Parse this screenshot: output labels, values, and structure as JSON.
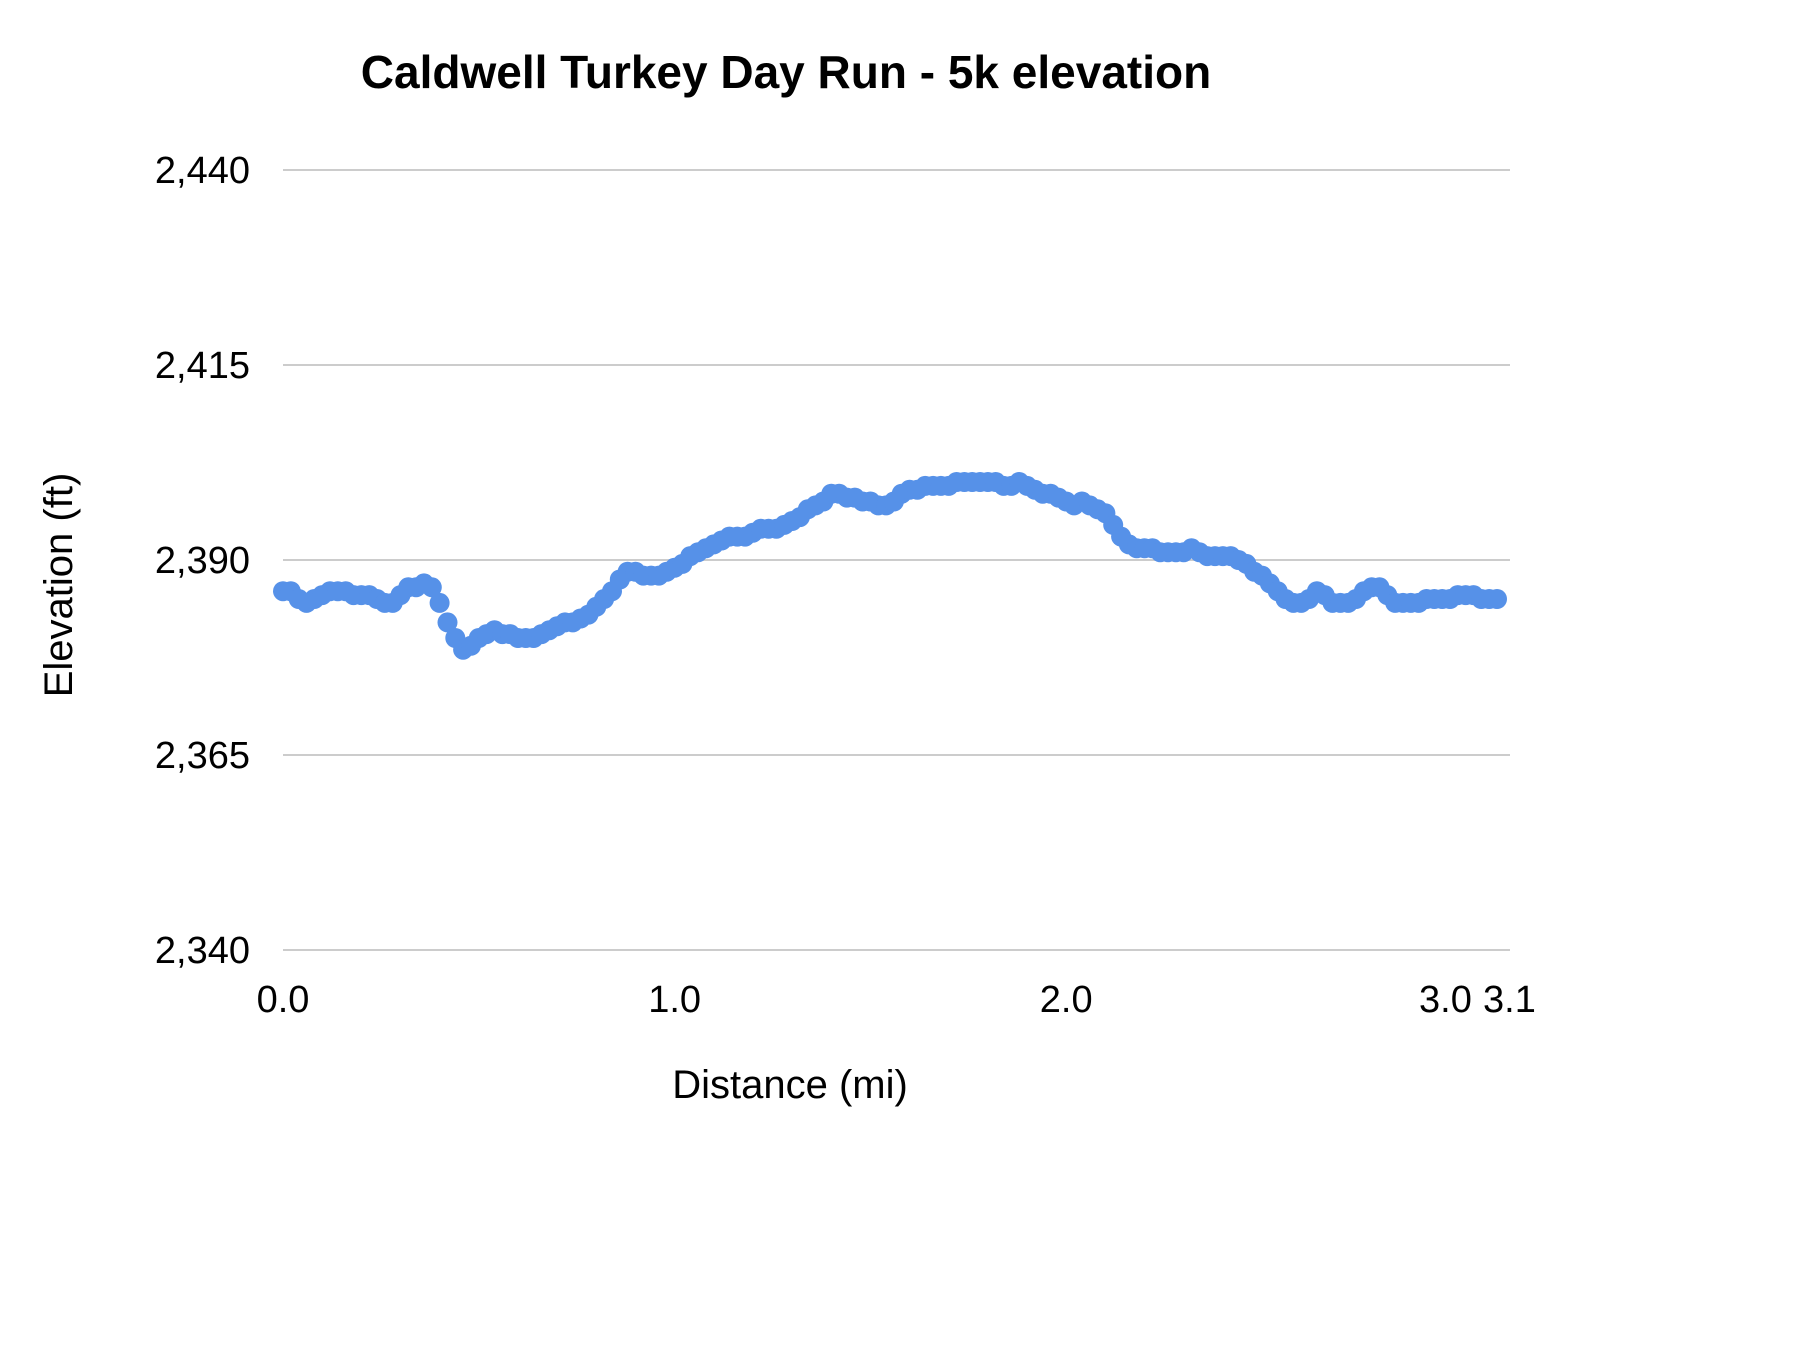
{
  "chart_data": {
    "type": "scatter",
    "title": "Caldwell Turkey Day Run - 5k elevation",
    "xlabel": "Distance (mi)",
    "ylabel": "Elevation (ft)",
    "xlim": [
      0,
      3.1
    ],
    "ylim": [
      2340,
      2440
    ],
    "grid": true,
    "legend": "none",
    "point_color": "#5691E8",
    "grid_color": "#CCCCCC",
    "text_color": "#000000",
    "x_ticks": [
      {
        "v": 0.0,
        "label": "0.0"
      },
      {
        "v": 1.0,
        "label": "1.0"
      },
      {
        "v": 2.0,
        "label": "2.0"
      },
      {
        "v": 3.0,
        "label": "3.0"
      },
      {
        "v": 3.1,
        "label": "3.1"
      }
    ],
    "y_ticks": [
      {
        "v": 2340,
        "label": "2,340"
      },
      {
        "v": 2365,
        "label": "2,365"
      },
      {
        "v": 2390,
        "label": "2,390"
      },
      {
        "v": 2415,
        "label": "2,415"
      },
      {
        "v": 2440,
        "label": "2,440"
      }
    ],
    "points": [
      [
        0.0,
        2386
      ],
      [
        0.02,
        2386
      ],
      [
        0.04,
        2385
      ],
      [
        0.06,
        2384.5
      ],
      [
        0.08,
        2385
      ],
      [
        0.1,
        2385.5
      ],
      [
        0.12,
        2386
      ],
      [
        0.14,
        2386
      ],
      [
        0.16,
        2386
      ],
      [
        0.18,
        2385.5
      ],
      [
        0.2,
        2385.5
      ],
      [
        0.22,
        2385.5
      ],
      [
        0.24,
        2385
      ],
      [
        0.26,
        2384.5
      ],
      [
        0.28,
        2384.5
      ],
      [
        0.3,
        2385.5
      ],
      [
        0.32,
        2386.5
      ],
      [
        0.34,
        2386.5
      ],
      [
        0.36,
        2387
      ],
      [
        0.38,
        2386.5
      ],
      [
        0.4,
        2384.5
      ],
      [
        0.42,
        2382
      ],
      [
        0.44,
        2380
      ],
      [
        0.46,
        2378.5
      ],
      [
        0.48,
        2379
      ],
      [
        0.5,
        2380
      ],
      [
        0.52,
        2380.5
      ],
      [
        0.54,
        2381
      ],
      [
        0.56,
        2380.5
      ],
      [
        0.58,
        2380.5
      ],
      [
        0.6,
        2380
      ],
      [
        0.62,
        2380
      ],
      [
        0.64,
        2380
      ],
      [
        0.66,
        2380.5
      ],
      [
        0.68,
        2381
      ],
      [
        0.7,
        2381.5
      ],
      [
        0.72,
        2382
      ],
      [
        0.74,
        2382
      ],
      [
        0.76,
        2382.5
      ],
      [
        0.78,
        2383
      ],
      [
        0.8,
        2384
      ],
      [
        0.82,
        2385
      ],
      [
        0.84,
        2386
      ],
      [
        0.86,
        2387.5
      ],
      [
        0.88,
        2388.5
      ],
      [
        0.9,
        2388.5
      ],
      [
        0.92,
        2388
      ],
      [
        0.94,
        2388
      ],
      [
        0.96,
        2388
      ],
      [
        0.98,
        2388.5
      ],
      [
        1.0,
        2389
      ],
      [
        1.02,
        2389.5
      ],
      [
        1.04,
        2390.5
      ],
      [
        1.06,
        2391
      ],
      [
        1.08,
        2391.5
      ],
      [
        1.1,
        2392
      ],
      [
        1.12,
        2392.5
      ],
      [
        1.14,
        2393
      ],
      [
        1.16,
        2393
      ],
      [
        1.18,
        2393
      ],
      [
        1.2,
        2393.5
      ],
      [
        1.22,
        2394
      ],
      [
        1.24,
        2394
      ],
      [
        1.26,
        2394
      ],
      [
        1.28,
        2394.5
      ],
      [
        1.3,
        2395
      ],
      [
        1.32,
        2395.5
      ],
      [
        1.34,
        2396.5
      ],
      [
        1.36,
        2397
      ],
      [
        1.38,
        2397.5
      ],
      [
        1.4,
        2398.5
      ],
      [
        1.42,
        2398.5
      ],
      [
        1.44,
        2398
      ],
      [
        1.46,
        2398
      ],
      [
        1.48,
        2397.5
      ],
      [
        1.5,
        2397.5
      ],
      [
        1.52,
        2397
      ],
      [
        1.54,
        2397
      ],
      [
        1.56,
        2397.5
      ],
      [
        1.58,
        2398.5
      ],
      [
        1.6,
        2399
      ],
      [
        1.62,
        2399
      ],
      [
        1.64,
        2399.5
      ],
      [
        1.66,
        2399.5
      ],
      [
        1.68,
        2399.5
      ],
      [
        1.7,
        2399.5
      ],
      [
        1.72,
        2400
      ],
      [
        1.74,
        2400
      ],
      [
        1.76,
        2400
      ],
      [
        1.78,
        2400
      ],
      [
        1.8,
        2400
      ],
      [
        1.82,
        2400
      ],
      [
        1.84,
        2399.5
      ],
      [
        1.86,
        2399.5
      ],
      [
        1.88,
        2400
      ],
      [
        1.9,
        2399.5
      ],
      [
        1.92,
        2399
      ],
      [
        1.94,
        2398.5
      ],
      [
        1.96,
        2398.5
      ],
      [
        1.98,
        2398
      ],
      [
        2.0,
        2397.5
      ],
      [
        2.02,
        2397
      ],
      [
        2.04,
        2397.5
      ],
      [
        2.06,
        2397
      ],
      [
        2.08,
        2396.5
      ],
      [
        2.1,
        2396
      ],
      [
        2.12,
        2394.5
      ],
      [
        2.14,
        2393
      ],
      [
        2.16,
        2392
      ],
      [
        2.18,
        2391.5
      ],
      [
        2.2,
        2391.5
      ],
      [
        2.22,
        2391.5
      ],
      [
        2.24,
        2391
      ],
      [
        2.26,
        2391
      ],
      [
        2.28,
        2391
      ],
      [
        2.3,
        2391
      ],
      [
        2.32,
        2391.5
      ],
      [
        2.34,
        2391
      ],
      [
        2.36,
        2390.5
      ],
      [
        2.38,
        2390.5
      ],
      [
        2.4,
        2390.5
      ],
      [
        2.42,
        2390.5
      ],
      [
        2.44,
        2390
      ],
      [
        2.46,
        2389.5
      ],
      [
        2.48,
        2388.5
      ],
      [
        2.5,
        2388
      ],
      [
        2.52,
        2387
      ],
      [
        2.54,
        2386
      ],
      [
        2.56,
        2385
      ],
      [
        2.58,
        2384.5
      ],
      [
        2.6,
        2384.5
      ],
      [
        2.62,
        2385
      ],
      [
        2.64,
        2386
      ],
      [
        2.66,
        2385.5
      ],
      [
        2.68,
        2384.5
      ],
      [
        2.7,
        2384.5
      ],
      [
        2.72,
        2384.5
      ],
      [
        2.74,
        2385
      ],
      [
        2.76,
        2386
      ],
      [
        2.78,
        2386.5
      ],
      [
        2.8,
        2386.5
      ],
      [
        2.82,
        2385.5
      ],
      [
        2.84,
        2384.5
      ],
      [
        2.86,
        2384.5
      ],
      [
        2.88,
        2384.5
      ],
      [
        2.9,
        2384.5
      ],
      [
        2.92,
        2385
      ],
      [
        2.94,
        2385
      ],
      [
        2.96,
        2385
      ],
      [
        2.98,
        2385
      ],
      [
        3.0,
        2385.5
      ],
      [
        3.02,
        2385.5
      ],
      [
        3.04,
        2385.5
      ],
      [
        3.06,
        2385
      ],
      [
        3.08,
        2385
      ],
      [
        3.1,
        2385
      ]
    ]
  }
}
